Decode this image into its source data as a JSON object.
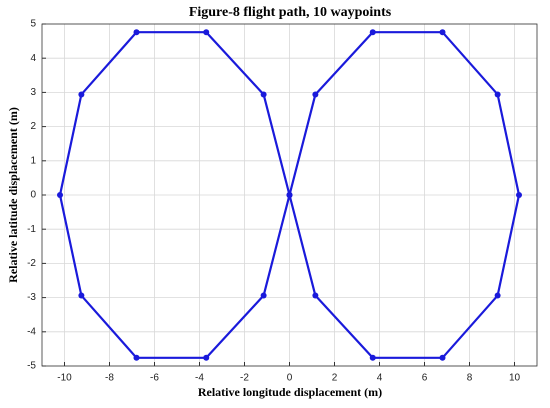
{
  "chart_data": {
    "type": "line",
    "title": "Figure-8 flight path, 10 waypoints",
    "x_label": "Relative longitude displacement (m)",
    "y_label": "Relative latitude displacement (m)",
    "series": [
      {
        "color": "#1a1adb",
        "x": [
          0,
          1.15,
          3.7,
          6.8,
          9.25,
          10.2,
          9.25,
          6.8,
          3.7,
          1.15,
          0,
          -1.15,
          -3.7,
          -6.8,
          -9.25,
          -10.2,
          -9.25,
          -6.8,
          -3.7,
          -1.15,
          0
        ],
        "values": [
          0,
          2.94,
          4.76,
          4.76,
          2.94,
          0,
          -2.94,
          -4.76,
          -4.76,
          -2.94,
          0,
          2.94,
          4.76,
          4.76,
          2.94,
          0,
          -2.94,
          -4.76,
          -4.76,
          -2.94,
          0
        ]
      }
    ],
    "xlim": [
      -11,
      11
    ],
    "xticks": [
      -10,
      -8,
      -6,
      -4,
      -2,
      0,
      2,
      4,
      6,
      8,
      10
    ],
    "ylim": [
      -5,
      5
    ],
    "yticks": [
      -5,
      -4,
      -3,
      -2,
      -1,
      0,
      1,
      2,
      3,
      4,
      5
    ],
    "grid": true
  }
}
